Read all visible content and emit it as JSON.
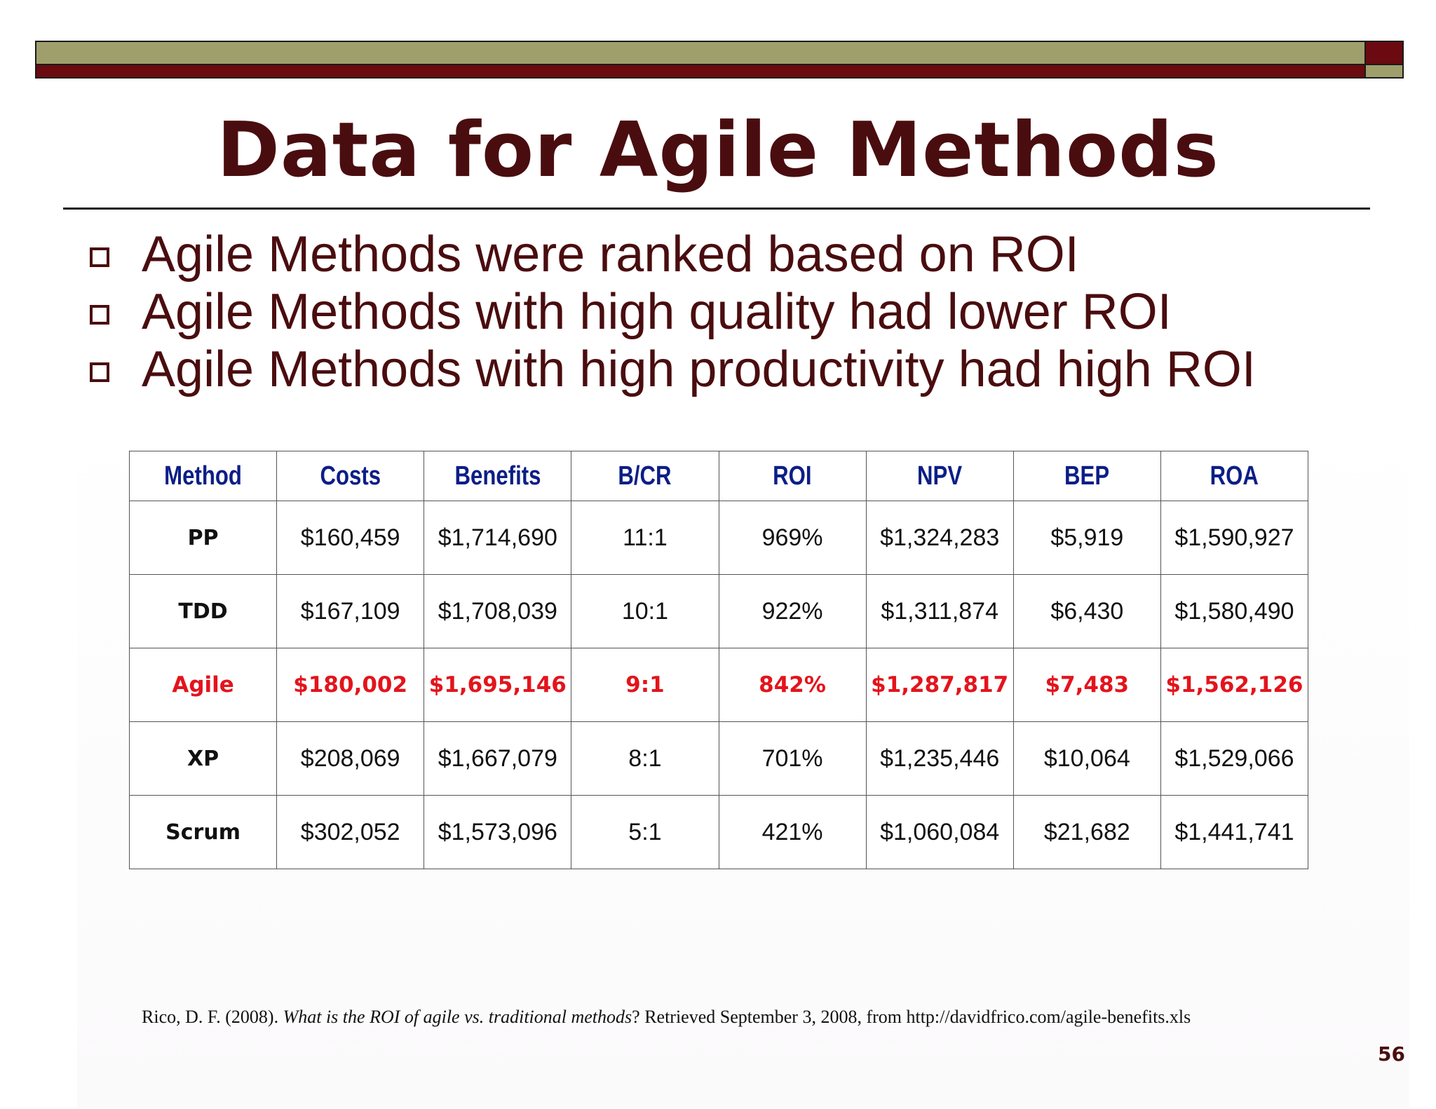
{
  "slide": {
    "title": "Data for Agile Methods",
    "bullets": [
      "Agile Methods were ranked based on ROI",
      "Agile Methods with high quality had lower ROI",
      "Agile Methods with high productivity had high ROI"
    ],
    "page_number": "56",
    "colors": {
      "title": "#4a0d0f",
      "header_text": "#0c1e86",
      "highlight_row": "#e3141c",
      "bar_olive": "#9f9f6c",
      "bar_maroon": "#6b0a10"
    }
  },
  "table": {
    "headers": [
      "Method",
      "Costs",
      "Benefits",
      "B/CR",
      "ROI",
      "NPV",
      "BEP",
      "ROA"
    ],
    "rows": [
      [
        "PP",
        "$160,459",
        "$1,714,690",
        "11:1",
        "969%",
        "$1,324,283",
        "$5,919",
        "$1,590,927"
      ],
      [
        "TDD",
        "$167,109",
        "$1,708,039",
        "10:1",
        "922%",
        "$1,311,874",
        "$6,430",
        "$1,580,490"
      ],
      [
        "Agile",
        "$180,002",
        "$1,695,146",
        "9:1",
        "842%",
        "$1,287,817",
        "$7,483",
        "$1,562,126"
      ],
      [
        "XP",
        "$208,069",
        "$1,667,079",
        "8:1",
        "701%",
        "$1,235,446",
        "$10,064",
        "$1,529,066"
      ],
      [
        "Scrum",
        "$302,052",
        "$1,573,096",
        "5:1",
        "421%",
        "$1,060,084",
        "$21,682",
        "$1,441,741"
      ]
    ],
    "highlighted_row": "Agile"
  },
  "citation": {
    "prefix": "Rico, D. F. (2008). ",
    "italic": "What is the ROI of agile vs. traditional methods",
    "suffix": "? Retrieved September 3, 2008, from http://davidfrico.com/agile-benefits.xls"
  }
}
